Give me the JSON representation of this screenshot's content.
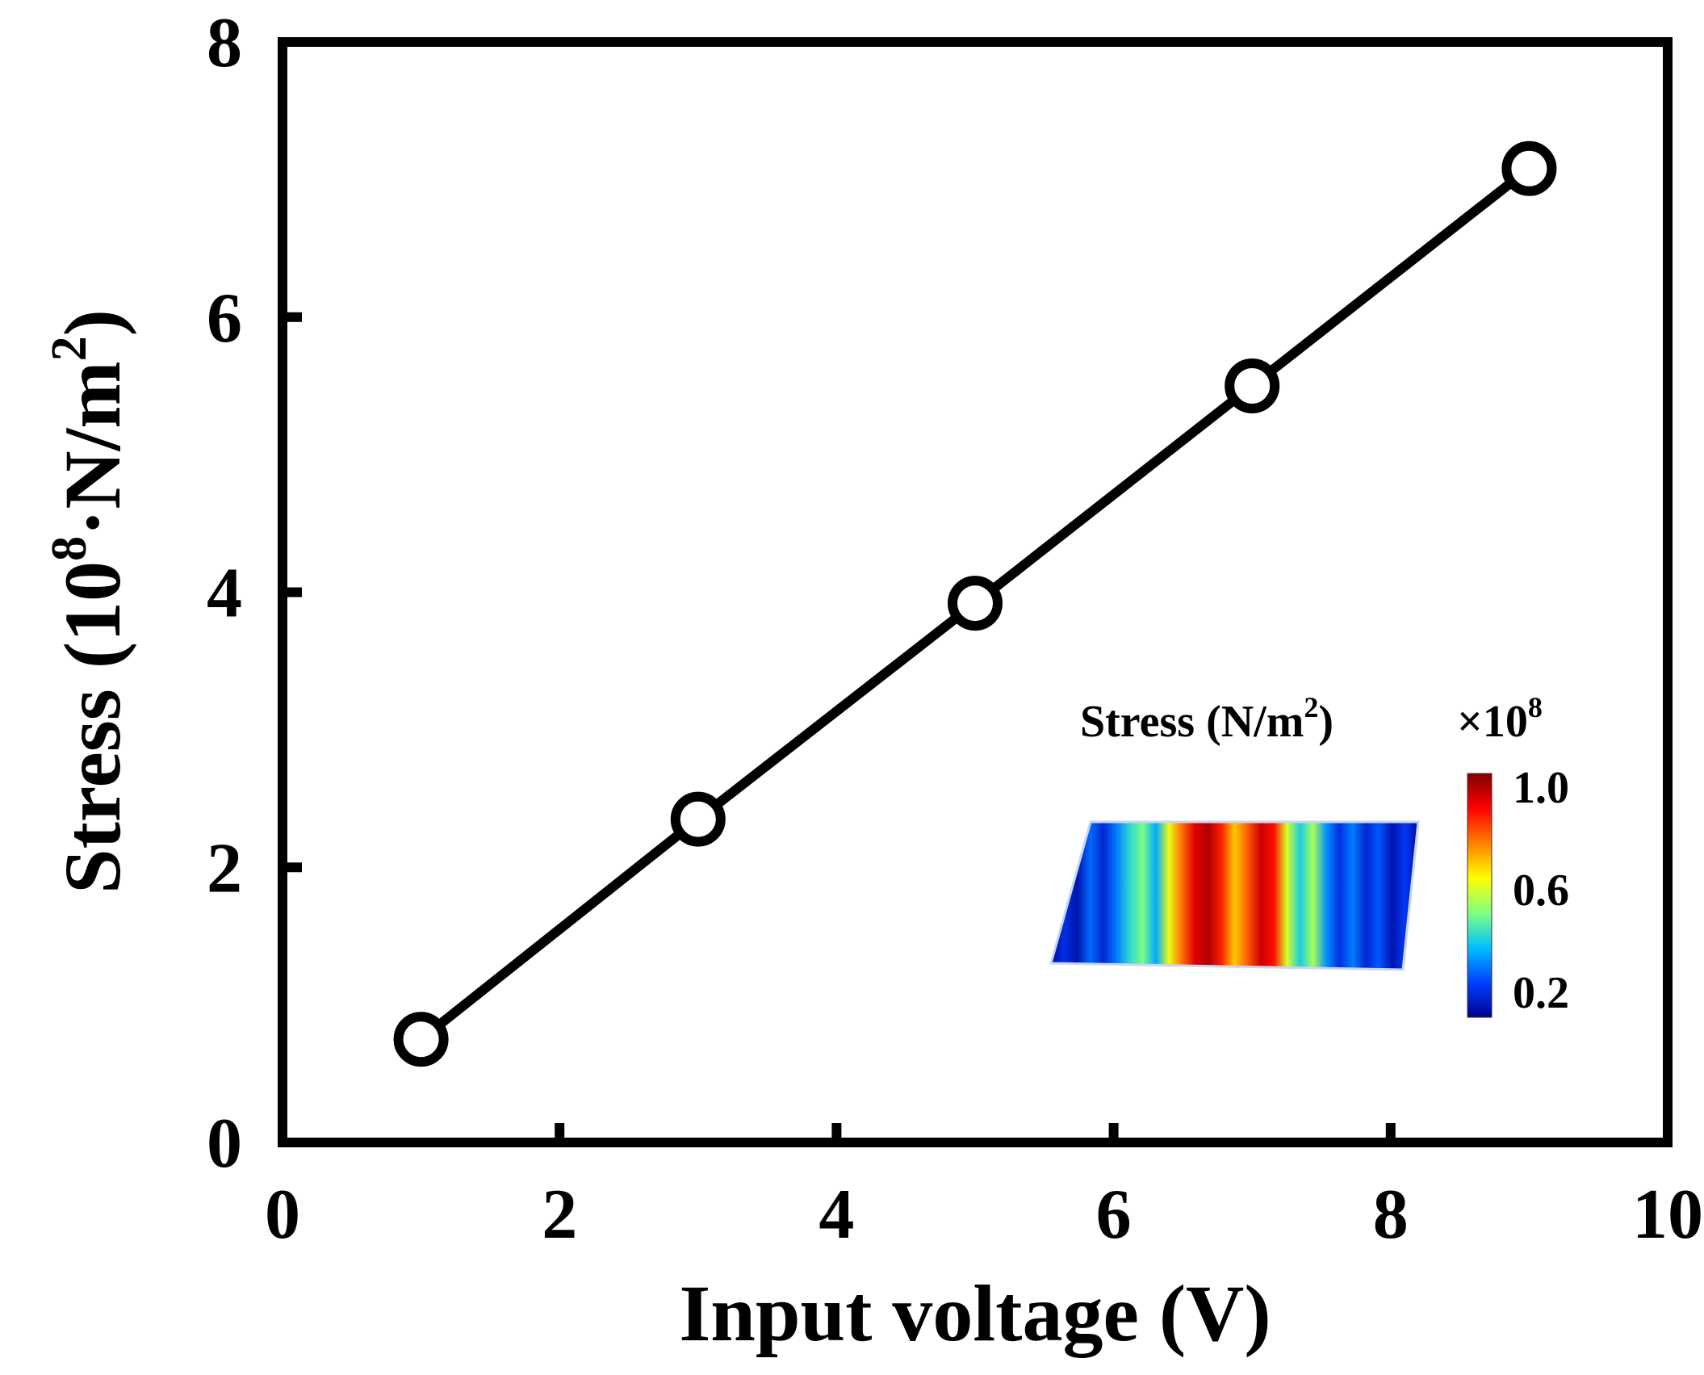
{
  "chart_data": {
    "type": "line",
    "title": "",
    "xlabel": "Input voltage (V)",
    "ylabel": {
      "prefix": "Stress (10",
      "exp": "8",
      "middle": "·N/m",
      "exp2": "2",
      "suffix": ")"
    },
    "xlim": [
      0,
      10
    ],
    "ylim": [
      0,
      8
    ],
    "xticks": [
      0,
      2,
      4,
      6,
      8,
      10
    ],
    "yticks": [
      0,
      2,
      4,
      6,
      8
    ],
    "grid": false,
    "series": [
      {
        "name": "Stress",
        "marker": "open-circle",
        "color": "#000000",
        "x": [
          1,
          3,
          5,
          7,
          9
        ],
        "y": [
          0.75,
          2.35,
          3.92,
          5.5,
          7.08
        ]
      }
    ],
    "inset": {
      "title_prefix": "Stress (N/m",
      "title_exp": "2",
      "title_suffix": ")",
      "multiplier_prefix": "×10",
      "multiplier_exp": "8",
      "colorbar_ticks": [
        "1.0",
        "0.6",
        "0.2"
      ],
      "colorbar_tick_values": [
        1.0,
        0.6,
        0.2
      ],
      "colorbar_range": [
        0.1,
        1.05
      ],
      "colormap": [
        "#00008f",
        "#0040ff",
        "#00c0ff",
        "#80ff80",
        "#ffff00",
        "#ff8000",
        "#ff0000",
        "#800000"
      ],
      "stripe_stress_values": [
        0.12,
        0.2,
        0.14,
        0.28,
        0.18,
        0.3,
        0.42,
        0.5,
        0.35,
        0.62,
        0.8,
        0.95,
        1.0,
        0.88,
        0.7,
        0.82,
        0.97,
        0.9,
        0.6,
        0.4,
        0.55,
        0.32,
        0.2,
        0.3,
        0.18,
        0.26,
        0.14,
        0.22,
        0.12
      ]
    }
  }
}
